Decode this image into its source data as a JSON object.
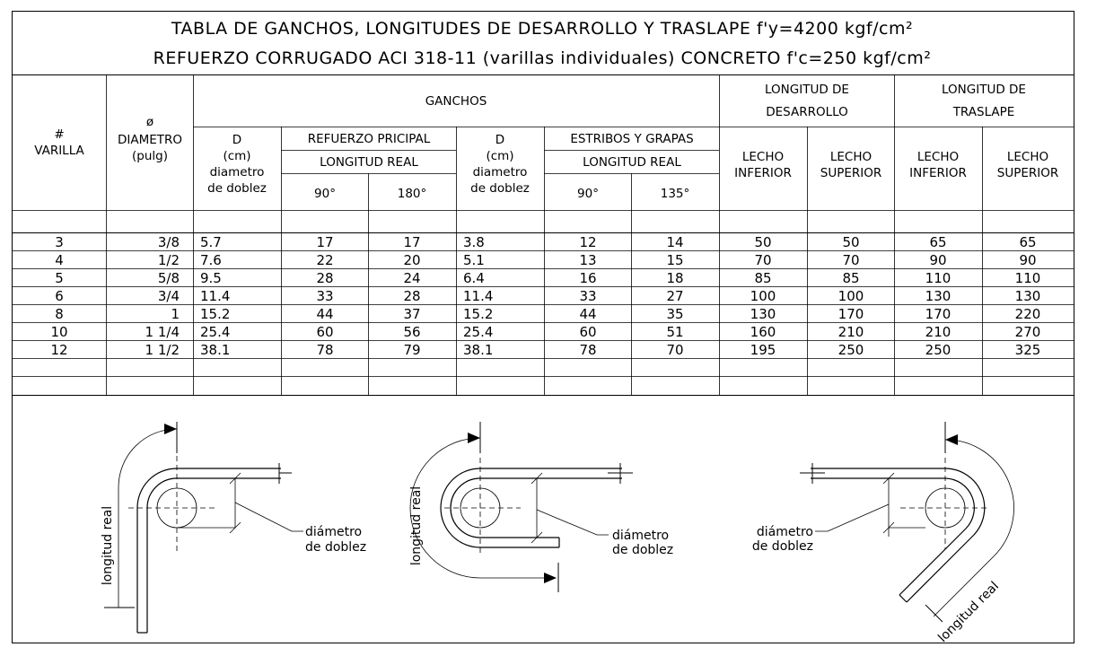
{
  "title": {
    "line1": "TABLA DE GANCHOS, LONGITUDES DE DESARROLLO Y TRASLAPE f'y=4200 kgf/cm²",
    "line2": "REFUERZO CORRUGADO ACI 318-11 (varillas individuales) CONCRETO f'c=250 kgf/cm²"
  },
  "headers": {
    "num_symbol": "#",
    "num_label": "VARILLA",
    "dia_symbol": "ø",
    "dia_label": "DIAMETRO",
    "dia_unit": "(pulg)",
    "ganchos": "GANCHOS",
    "desarrollo_1": "LONGITUD DE",
    "desarrollo_2": "DESARROLLO",
    "traslape_1": "LONGITUD DE",
    "traslape_2": "TRASLAPE",
    "d": "D",
    "cm": "(cm)",
    "diametro": "diametro",
    "de_doblez": "de doblez",
    "refuerzo_principal": "REFUERZO PRICIPAL",
    "estribos": "ESTRIBOS Y GRAPAS",
    "longitud_real": "LONGITUD REAL",
    "deg90": "90°",
    "deg180": "180°",
    "deg135": "135°",
    "lecho": "LECHO",
    "inferior": "INFERIOR",
    "superior": "SUPERIOR"
  },
  "rows": [
    [
      "3",
      "3/8",
      "5.7",
      "17",
      "17",
      "3.8",
      "12",
      "14",
      "50",
      "50",
      "65",
      "65"
    ],
    [
      "4",
      "1/2",
      "7.6",
      "22",
      "20",
      "5.1",
      "13",
      "15",
      "70",
      "70",
      "90",
      "90"
    ],
    [
      "5",
      "5/8",
      "9.5",
      "28",
      "24",
      "6.4",
      "16",
      "18",
      "85",
      "85",
      "110",
      "110"
    ],
    [
      "6",
      "3/4",
      "11.4",
      "33",
      "28",
      "11.4",
      "33",
      "27",
      "100",
      "100",
      "130",
      "130"
    ],
    [
      "8",
      "1",
      "15.2",
      "44",
      "37",
      "15.2",
      "44",
      "35",
      "130",
      "170",
      "170",
      "220"
    ],
    [
      "10",
      "1  1/4",
      "25.4",
      "60",
      "56",
      "25.4",
      "60",
      "51",
      "160",
      "210",
      "210",
      "270"
    ],
    [
      "12",
      "1  1/2",
      "38.1",
      "78",
      "79",
      "38.1",
      "78",
      "70",
      "195",
      "250",
      "250",
      "325"
    ]
  ],
  "diagrams": {
    "longitud_real": "longitud real",
    "diametro_1": "diámetro",
    "diametro_2": "de doblez"
  }
}
